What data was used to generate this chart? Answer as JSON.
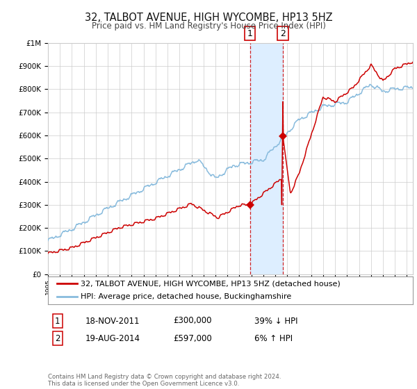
{
  "title": "32, TALBOT AVENUE, HIGH WYCOMBE, HP13 5HZ",
  "subtitle": "Price paid vs. HM Land Registry's House Price Index (HPI)",
  "legend_line1": "32, TALBOT AVENUE, HIGH WYCOMBE, HP13 5HZ (detached house)",
  "legend_line2": "HPI: Average price, detached house, Buckinghamshire",
  "note": "Contains HM Land Registry data © Crown copyright and database right 2024.\nThis data is licensed under the Open Government Licence v3.0.",
  "sale1_date": "18-NOV-2011",
  "sale1_price": 300000,
  "sale1_hpi": "39% ↓ HPI",
  "sale2_date": "19-AUG-2014",
  "sale2_price": 597000,
  "sale2_hpi": "6% ↑ HPI",
  "sale1_label": "1",
  "sale2_label": "2",
  "sale1_x": 2011.88,
  "sale2_x": 2014.63,
  "red_color": "#cc0000",
  "blue_color": "#88bbdd",
  "shade_color": "#ddeeff",
  "grid_color": "#cccccc",
  "background_color": "#ffffff",
  "ylim": [
    0,
    1000000
  ],
  "xlim": [
    1995,
    2025.5
  ]
}
